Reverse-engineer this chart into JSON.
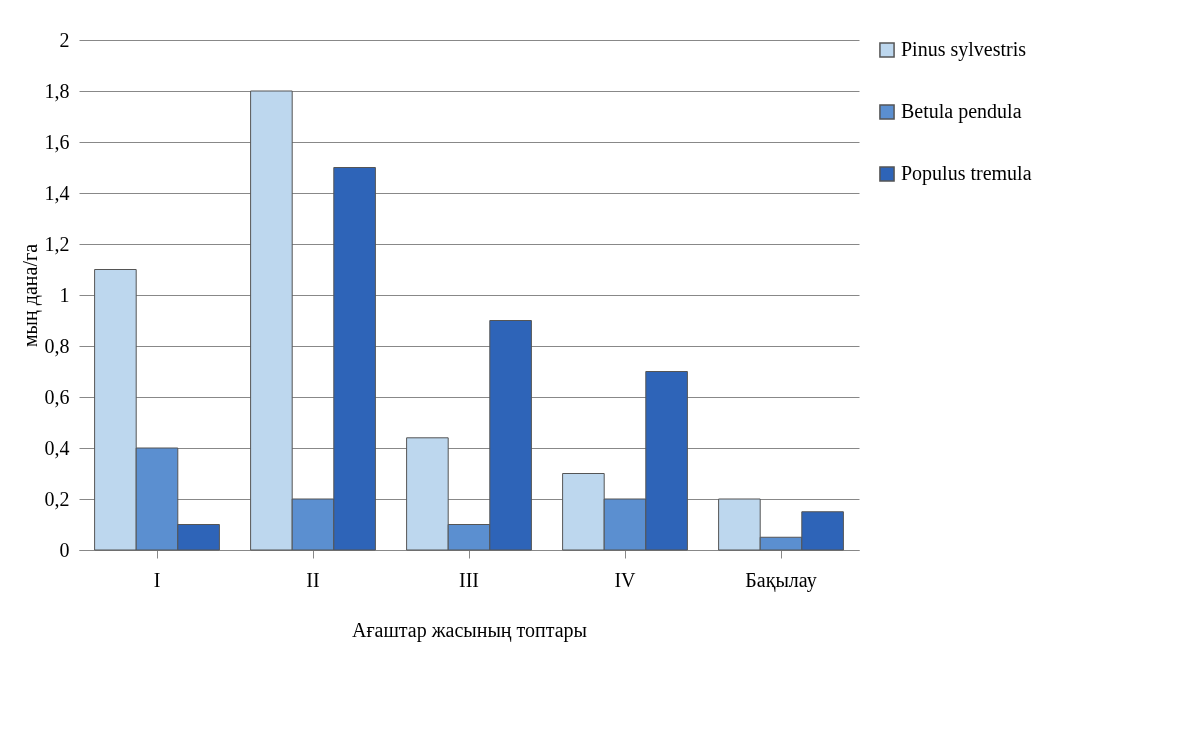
{
  "chart_data": {
    "type": "bar",
    "xlabel": "Ағаштар жасының топтары",
    "ylabel": "мың дана/га",
    "categories": [
      "I",
      "II",
      "III",
      "IV",
      "Бақылау"
    ],
    "series": [
      {
        "name": "Pinus sylvestris",
        "color": "#bdd7ee",
        "values": [
          1.1,
          1.8,
          0.44,
          0.3,
          0.2
        ]
      },
      {
        "name": "Betula pendula",
        "color": "#5b8fd0",
        "values": [
          0.4,
          0.2,
          0.1,
          0.2,
          0.05
        ]
      },
      {
        "name": "Populus tremula",
        "color": "#2e64b8",
        "values": [
          0.1,
          1.5,
          0.9,
          0.7,
          0.15
        ]
      }
    ],
    "ylim": [
      0,
      2
    ],
    "yticks": [
      0,
      {
        "value": 0.2,
        "label": "0,2"
      },
      {
        "value": 0.4,
        "label": "0,4"
      },
      {
        "value": 0.6,
        "label": "0,6"
      },
      {
        "value": 0.8,
        "label": "0,8"
      },
      1,
      {
        "value": 1.2,
        "label": "1,2"
      },
      {
        "value": 1.4,
        "label": "1,4"
      },
      {
        "value": 1.6,
        "label": "1,6"
      },
      {
        "value": 1.8,
        "label": "1,8"
      },
      2
    ],
    "grid": "y",
    "legend": "right"
  }
}
